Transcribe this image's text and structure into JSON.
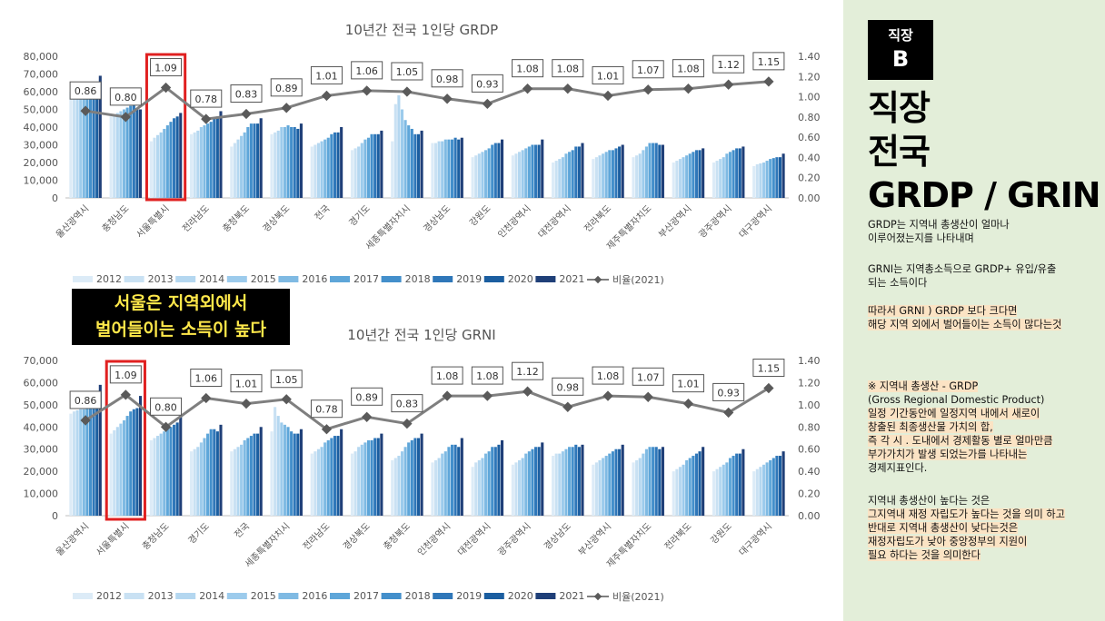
{
  "colors": {
    "years": [
      "#dcebf7",
      "#c9e1f3",
      "#b4d7f0",
      "#9ccbec",
      "#7fbae3",
      "#5ea6d9",
      "#438fcb",
      "#2f77b9",
      "#1b5ea0",
      "#1f3f78"
    ],
    "ratio_line": "#7f7f7f",
    "highlight_box": "#e02020",
    "panel_bg": "#e3eed9",
    "callout_text": "#ffe84a"
  },
  "callout": {
    "line1": "서울은 지역외에서",
    "line2": "벌어들이는 소득이 높다"
  },
  "panel": {
    "badge_line1": "직장",
    "badge_line2": "B",
    "title1": "직장",
    "title2": "전국",
    "title3": "GRDP / GRIN",
    "p1_l1": "GRDP는 지역내 총생산이 얼마나",
    "p1_l2": "이루어졌는지를 나타내며",
    "p2_l1": "GRNI는 지역총소득으로 GRDP+ 유입/유출",
    "p2_l2": "되는 소득이다",
    "p3_l1": "따라서 GRNI ) GRDP 보다 크다면",
    "p3_l2": "해당 지역 외에서 벌어들이는 소득이 많다는것",
    "p4_l1": "※ 지역내 총생산 - GRDP",
    "p4_l2": "(Gross Regional Domestic Product)",
    "p4_l3": "일정 기간동안에 일정지역 내에서 새로이",
    "p4_l4": "창출된 최종생산물 가치의 합,",
    "p4_l5": "즉 각 시 . 도내에서 경제활동 별로 얼마만큼",
    "p4_l6": "부가가치가 발생 되었는가를 나타내는",
    "p4_l7": "경제지표인다.",
    "p5_l1": "지역내 총생산이 높다는 것은",
    "p5_l2": "그지역내 재정 자립도가 높다는 것을 의미 하고",
    "p5_l3": "반대로 지역내 총생산이 낮다는것은",
    "p5_l4": "재정자립도가 낮아 중앙정부의 지원이",
    "p5_l5": "필요 하다는 것을 의미한다"
  },
  "chart_data": [
    {
      "type": "bar",
      "title": "10년간 전국 1인당 GRDP",
      "years": [
        "2012",
        "2013",
        "2014",
        "2015",
        "2016",
        "2017",
        "2018",
        "2019",
        "2020",
        "2021"
      ],
      "ratio_name": "비율(2021)",
      "categories": [
        "울산광역시",
        "충청남도",
        "서울특별시",
        "전라남도",
        "충청북도",
        "경상북도",
        "전국",
        "경기도",
        "세종특별자치시",
        "경상남도",
        "강원도",
        "인천광역시",
        "대전광역시",
        "전라북도",
        "제주특별자치도",
        "부산광역시",
        "광주광역시",
        "대구광역시"
      ],
      "values": [
        [
          60000,
          62000,
          63000,
          63500,
          62000,
          63000,
          64000,
          65000,
          64000,
          69000
        ],
        [
          46000,
          47000,
          48000,
          49000,
          50000,
          51000,
          52000,
          52500,
          50000,
          50000
        ],
        [
          32000,
          34000,
          35500,
          37000,
          39000,
          41000,
          43000,
          45000,
          46000,
          48000
        ],
        [
          36000,
          37000,
          38000,
          40000,
          41000,
          42000,
          43000,
          45000,
          46000,
          49000
        ],
        [
          29000,
          31000,
          33000,
          35000,
          37000,
          40000,
          42000,
          42000,
          42000,
          45000
        ],
        [
          36000,
          37000,
          38000,
          40000,
          40000,
          41000,
          40000,
          40000,
          39000,
          42000
        ],
        [
          29000,
          30000,
          31000,
          32000,
          33000,
          34000,
          36000,
          37000,
          37000,
          40000
        ],
        [
          27000,
          28000,
          29000,
          31000,
          33000,
          34000,
          36000,
          36000,
          36000,
          38000
        ],
        [
          32000,
          53000,
          58000,
          50000,
          44000,
          41000,
          39000,
          36000,
          36000,
          38000
        ],
        [
          31000,
          31000,
          32000,
          32000,
          33000,
          33000,
          33000,
          34000,
          33000,
          34000
        ],
        [
          23000,
          24000,
          25000,
          26000,
          27000,
          28000,
          30000,
          31000,
          31000,
          33000
        ],
        [
          24000,
          25000,
          26000,
          27000,
          28000,
          29000,
          30000,
          30000,
          30000,
          33000
        ],
        [
          20000,
          21000,
          22000,
          23000,
          25000,
          26000,
          27000,
          29000,
          29000,
          31000
        ],
        [
          22000,
          23000,
          24000,
          25000,
          26000,
          27000,
          27000,
          28000,
          29000,
          30000
        ],
        [
          23000,
          24000,
          25000,
          27000,
          29000,
          31000,
          31000,
          31000,
          30000,
          30000
        ],
        [
          20000,
          21000,
          22000,
          23000,
          24000,
          25000,
          26000,
          27000,
          27000,
          28000
        ],
        [
          20000,
          21000,
          22000,
          23000,
          25000,
          26000,
          27000,
          28000,
          28000,
          29000
        ],
        [
          18000,
          19000,
          19500,
          20000,
          21000,
          22000,
          22500,
          23000,
          23000,
          25000
        ]
      ],
      "ratio": [
        0.86,
        0.8,
        1.09,
        0.78,
        0.83,
        0.89,
        1.01,
        1.06,
        1.05,
        0.98,
        0.93,
        1.08,
        1.08,
        1.01,
        1.07,
        1.08,
        1.12,
        1.15
      ],
      "ratio_labels": [
        "0.86",
        "0.80",
        "1.09",
        "0.78",
        "0.83",
        "0.89",
        "1.01",
        "1.06",
        "1.05",
        "0.98",
        "0.93",
        "1.08",
        "1.08",
        "1.01",
        "1.07",
        "1.08",
        "1.12",
        "1.15"
      ],
      "yticks": [
        "0",
        "10,000",
        "20,000",
        "30,000",
        "40,000",
        "50,000",
        "60,000",
        "70,000",
        "80,000"
      ],
      "y2ticks": [
        "0.00",
        "0.20",
        "0.40",
        "0.60",
        "0.80",
        "1.00",
        "1.20",
        "1.40"
      ],
      "ylim": [
        0,
        80000
      ],
      "y2lim": [
        0,
        1.4
      ],
      "highlight": "서울특별시",
      "legend": "bottom"
    },
    {
      "type": "bar",
      "title": "10년간 전국 1인당 GRNI",
      "years": [
        "2012",
        "2013",
        "2014",
        "2015",
        "2016",
        "2017",
        "2018",
        "2019",
        "2020",
        "2021"
      ],
      "ratio_name": "비율(2021)",
      "categories": [
        "울산광역시",
        "서울특별시",
        "충청남도",
        "경기도",
        "전국",
        "세종특별자치시",
        "전라남도",
        "경상북도",
        "충청북도",
        "인천광역시",
        "대전광역시",
        "광주광역시",
        "경상남도",
        "부산광역시",
        "제주특별자치도",
        "전라북도",
        "강원도",
        "대구광역시"
      ],
      "values": [
        [
          46000,
          47000,
          47500,
          48000,
          48000,
          49000,
          50000,
          52000,
          53000,
          59000
        ],
        [
          37000,
          38500,
          40000,
          41500,
          43000,
          45000,
          47000,
          48000,
          48500,
          54000
        ],
        [
          34000,
          35000,
          36000,
          37000,
          38000,
          39000,
          40000,
          41000,
          42000,
          45000
        ],
        [
          29000,
          30000,
          31000,
          33000,
          35000,
          37000,
          39000,
          39000,
          38000,
          41000
        ],
        [
          29000,
          30000,
          31000,
          32000,
          34000,
          35000,
          36000,
          37000,
          37000,
          40000
        ],
        [
          38000,
          49000,
          45000,
          42000,
          41000,
          40000,
          38000,
          37000,
          37000,
          39000
        ],
        [
          28000,
          29000,
          30000,
          31000,
          33000,
          34000,
          35000,
          36000,
          36000,
          39000
        ],
        [
          28000,
          29000,
          31000,
          32000,
          33000,
          34000,
          34000,
          35000,
          35000,
          37000
        ],
        [
          25000,
          26000,
          27000,
          29000,
          31000,
          33000,
          34000,
          35000,
          35000,
          37000
        ],
        [
          24000,
          25000,
          26000,
          28000,
          29000,
          31000,
          32000,
          32000,
          31000,
          35000
        ],
        [
          22000,
          24000,
          25000,
          26000,
          28000,
          29000,
          31000,
          31000,
          32000,
          34000
        ],
        [
          23000,
          24000,
          25000,
          26000,
          28000,
          29000,
          30000,
          31000,
          31000,
          33000
        ],
        [
          27000,
          28000,
          28000,
          29000,
          30000,
          31000,
          31000,
          32000,
          31000,
          32000
        ],
        [
          23000,
          24000,
          25000,
          26000,
          27000,
          28000,
          29000,
          30000,
          30000,
          32000
        ],
        [
          24000,
          25000,
          26000,
          28000,
          30000,
          31000,
          31000,
          31000,
          30000,
          31000
        ],
        [
          20000,
          21000,
          22000,
          23000,
          25000,
          26000,
          27000,
          28000,
          29000,
          31000
        ],
        [
          20000,
          21000,
          22000,
          23000,
          24000,
          26000,
          27000,
          28000,
          28000,
          30000
        ],
        [
          20000,
          21000,
          22000,
          23000,
          24000,
          25000,
          26000,
          27000,
          27000,
          29000
        ]
      ],
      "ratio": [
        0.86,
        1.09,
        0.8,
        1.06,
        1.01,
        1.05,
        0.78,
        0.89,
        0.83,
        1.08,
        1.08,
        1.12,
        0.98,
        1.08,
        1.07,
        1.01,
        0.93,
        1.15
      ],
      "ratio_labels": [
        "0.86",
        "1.09",
        "0.80",
        "1.06",
        "1.01",
        "1.05",
        "0.78",
        "0.89",
        "0.83",
        "1.08",
        "1.08",
        "1.12",
        "0.98",
        "1.08",
        "1.07",
        "1.01",
        "0.93",
        "1.15"
      ],
      "yticks": [
        "0",
        "10,000",
        "20,000",
        "30,000",
        "40,000",
        "50,000",
        "60,000",
        "70,000"
      ],
      "y2ticks": [
        "0.00",
        "0.20",
        "0.40",
        "0.60",
        "0.80",
        "1.00",
        "1.20",
        "1.40"
      ],
      "ylim": [
        0,
        70000
      ],
      "y2lim": [
        0,
        1.4
      ],
      "highlight": "서울특별시",
      "legend": "bottom"
    }
  ]
}
